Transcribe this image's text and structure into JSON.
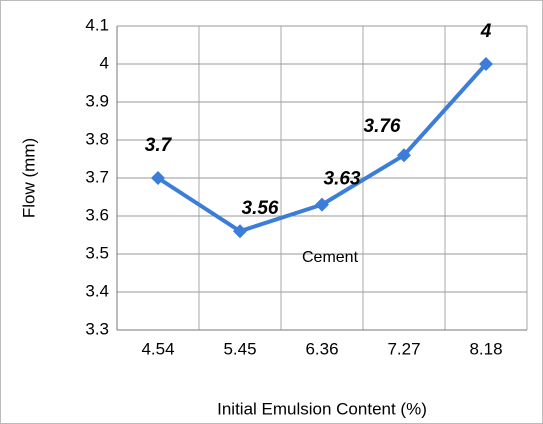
{
  "chart_data": {
    "type": "line",
    "x_label": "Initial Emulsion Content (%)",
    "y_label": "Flow (mm)",
    "annotation": "Cement",
    "categories": [
      "4.54",
      "5.45",
      "6.36",
      "7.27",
      "8.18"
    ],
    "series": [
      {
        "name": "Cement",
        "color": "#3b7dd8",
        "values": [
          3.7,
          3.56,
          3.63,
          3.76,
          4
        ]
      }
    ],
    "ylim": [
      3.3,
      4.1
    ],
    "yticks": [
      3.3,
      3.4,
      3.5,
      3.6,
      3.7,
      3.8,
      3.9,
      4,
      4.1
    ],
    "grid": true
  }
}
